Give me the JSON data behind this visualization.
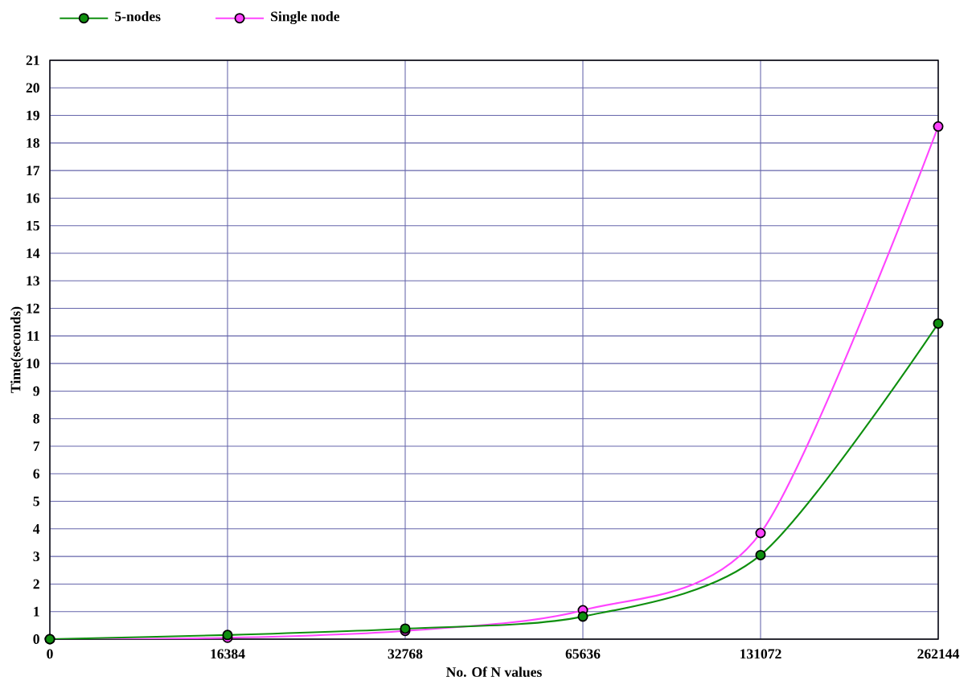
{
  "chart_data": {
    "type": "line",
    "xlabel": "No. Of N values",
    "ylabel": "Time(seconds)",
    "categories": [
      "0",
      "16384",
      "32768",
      "65636",
      "131072",
      "262144"
    ],
    "series": [
      {
        "name": "5-nodes",
        "color": "#0f8f0f",
        "values": [
          0,
          0.15,
          0.38,
          0.82,
          3.05,
          11.45
        ]
      },
      {
        "name": "Single node",
        "color": "#ff44ff",
        "values": [
          0,
          0.05,
          0.3,
          1.05,
          3.85,
          18.6
        ]
      }
    ],
    "ylim": [
      0,
      21
    ],
    "yticks": [
      0,
      1,
      2,
      3,
      4,
      5,
      6,
      7,
      8,
      9,
      10,
      11,
      12,
      13,
      14,
      15,
      16,
      17,
      18,
      19,
      20,
      21
    ],
    "grid": true,
    "legend": "top left",
    "marker": "circle",
    "line_style": "solid"
  }
}
